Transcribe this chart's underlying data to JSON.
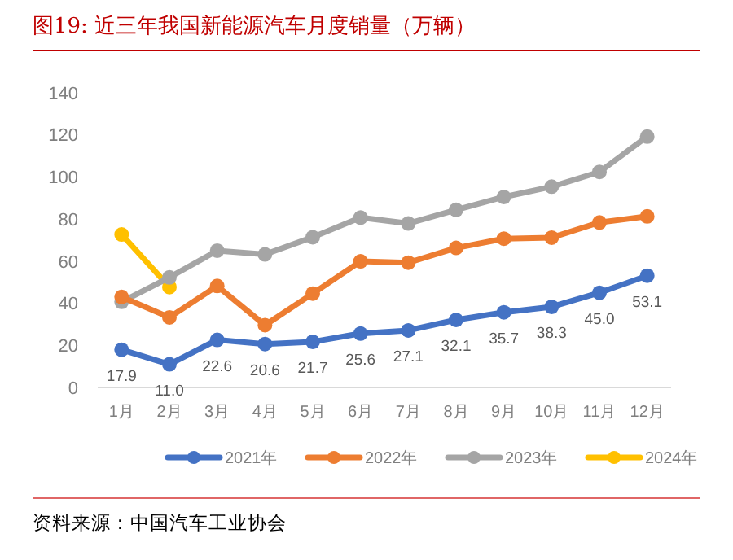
{
  "chart_data": {
    "type": "line",
    "title": "图19:   近三年我国新能源汽车月度销量（万辆）",
    "annotations": [
      "资料来源：中国汽车工业协会"
    ],
    "categories": [
      "1月",
      "2月",
      "3月",
      "4月",
      "5月",
      "6月",
      "7月",
      "8月",
      "9月",
      "10月",
      "11月",
      "12月"
    ],
    "series": [
      {
        "name": "2021年",
        "color": "#4472c4",
        "values": [
          17.9,
          11.0,
          22.6,
          20.6,
          21.7,
          25.6,
          27.1,
          32.1,
          35.7,
          38.3,
          45.0,
          53.1
        ],
        "value_labels": [
          "17.9",
          "11.0",
          "22.6",
          "20.6",
          "21.7",
          "25.6",
          "27.1",
          "32.1",
          "35.7",
          "38.3",
          "45.0",
          "53.1"
        ]
      },
      {
        "name": "2022年",
        "color": "#ed7d31",
        "values": [
          43.0,
          33.3,
          48.2,
          29.6,
          44.6,
          59.9,
          59.3,
          66.3,
          70.7,
          71.2,
          78.4,
          81.3
        ]
      },
      {
        "name": "2023年",
        "color": "#a5a5a5",
        "values": [
          40.7,
          52.3,
          65.0,
          63.2,
          71.4,
          80.7,
          77.9,
          84.4,
          90.5,
          95.4,
          102.4,
          119.2
        ]
      },
      {
        "name": "2024年",
        "color": "#ffc000",
        "values": [
          72.7,
          47.7,
          null,
          null,
          null,
          null,
          null,
          null,
          null,
          null,
          null,
          null
        ]
      }
    ],
    "ylim": [
      0,
      140
    ],
    "yticks": [
      0,
      20,
      40,
      60,
      80,
      100,
      120,
      140
    ],
    "grid": false,
    "legend": "bottom",
    "marker": "circle",
    "line_style": "solid"
  }
}
